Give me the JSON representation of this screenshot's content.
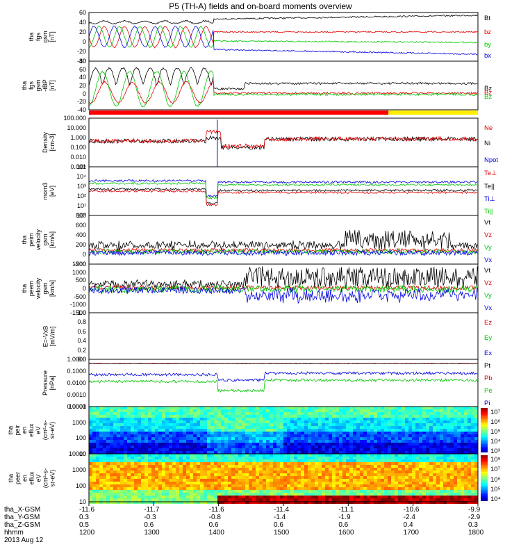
{
  "title": "P5 (TH-A) fields and on-board moments overview",
  "colors": {
    "black": "#000000",
    "red": "#e00000",
    "green": "#00c800",
    "blue": "#0000e0",
    "yellow": "#ffee00"
  },
  "panels": [
    {
      "id": "fgs_gsm",
      "ylabel_lines": [
        "tha",
        "fgs",
        "gsm",
        "[nT]"
      ],
      "yticks": [
        "60",
        "40",
        "20",
        "0",
        "-20",
        "-40"
      ],
      "ylim": [
        -40,
        60
      ],
      "legend": [
        {
          "t": "Bt",
          "c": "black"
        },
        {
          "t": "bz",
          "c": "red"
        },
        {
          "t": "by",
          "c": "green"
        },
        {
          "t": "bx",
          "c": "blue"
        }
      ]
    },
    {
      "id": "fgs_gse_fac",
      "ylabel_lines": [
        "tha",
        "fgs",
        "gsm",
        "-tBP",
        "[nT]"
      ],
      "yticks": [
        "80",
        "60",
        "40",
        "20",
        "0",
        "-20",
        "-40"
      ],
      "ylim": [
        -40,
        80
      ],
      "legend": [
        {
          "t": "Bz",
          "c": "black"
        },
        {
          "t": "Bz",
          "c": "red"
        },
        {
          "t": "Bz",
          "c": "green"
        }
      ]
    },
    {
      "id": "density",
      "ylabel_lines": [
        "Density",
        "[cm-3]"
      ],
      "yticks": [
        "100.000",
        "10.000",
        "1.000",
        "0.100",
        "0.010",
        "0.001"
      ],
      "legend": [
        {
          "t": "Ne",
          "c": "red"
        },
        {
          "t": "Ni",
          "c": "black"
        },
        {
          "t": "Npot",
          "c": "blue"
        }
      ]
    },
    {
      "id": "temp",
      "ylabel_lines": [
        "mom3",
        "[eV]"
      ],
      "yticks": [
        "10⁵",
        "10⁴",
        "10³",
        "10²",
        "10¹",
        "10⁰"
      ],
      "legend": [
        {
          "t": "Te⊥",
          "c": "red"
        },
        {
          "t": "Te||",
          "c": "black"
        },
        {
          "t": "Ti⊥",
          "c": "blue"
        },
        {
          "t": "Ti||",
          "c": "green"
        }
      ]
    },
    {
      "id": "peim_vel",
      "ylabel_lines": [
        "tha",
        "peim",
        "velocity",
        "gsm",
        "[km/s]"
      ],
      "yticks": [
        "800",
        "600",
        "400",
        "200",
        "0",
        "-200"
      ],
      "ylim": [
        -200,
        800
      ],
      "legend": [
        {
          "t": "Vt",
          "c": "black"
        },
        {
          "t": "Vz",
          "c": "red"
        },
        {
          "t": "Vy",
          "c": "green"
        },
        {
          "t": "Vx",
          "c": "blue"
        }
      ]
    },
    {
      "id": "peem_vel",
      "ylabel_lines": [
        "tha",
        "peem",
        "velocity",
        "gsm",
        "[km/s]"
      ],
      "yticks": [
        "1500",
        "1000",
        "500",
        "0",
        "-500",
        "-1000",
        "-1500"
      ],
      "ylim": [
        -1500,
        1500
      ],
      "legend": [
        {
          "t": "Vt",
          "c": "black"
        },
        {
          "t": "Vz",
          "c": "red"
        },
        {
          "t": "Vy",
          "c": "green"
        },
        {
          "t": "Vx",
          "c": "blue"
        }
      ]
    },
    {
      "id": "exb",
      "ylabel_lines": [
        "E=-VxB",
        "[mV/m]"
      ],
      "yticks": [
        "1.0",
        "0.8",
        "0.6",
        "0.4",
        "0.2",
        "0.0"
      ],
      "ylim": [
        0,
        1
      ],
      "legend": [
        {
          "t": "Ez",
          "c": "red"
        },
        {
          "t": "Ey",
          "c": "green"
        },
        {
          "t": "Ex",
          "c": "blue"
        }
      ]
    },
    {
      "id": "pressure",
      "ylabel_lines": [
        "Pressure",
        "[nPa]"
      ],
      "yticks": [
        "1.0000",
        "0.1000",
        "0.0100",
        "0.0010",
        "0.0001"
      ],
      "legend": [
        {
          "t": "Pt",
          "c": "black"
        },
        {
          "t": "Pb",
          "c": "red"
        },
        {
          "t": "Pe",
          "c": "green"
        },
        {
          "t": "Pi",
          "c": "blue"
        }
      ]
    },
    {
      "id": "peir_spec",
      "ylabel_lines": [
        "tha",
        "peir",
        "en",
        "eflux",
        "eV",
        "(cm²-s-",
        "sr-eV)"
      ],
      "yticks": [
        "10000",
        "1000",
        "100",
        "10"
      ],
      "cbar_ticks": [
        "10⁷",
        "10⁶",
        "10⁵",
        "10⁴",
        "10³"
      ]
    },
    {
      "id": "peer_spec",
      "ylabel_lines": [
        "tha",
        "peer",
        "en",
        "eflux",
        "eV",
        "(cm²-s-",
        "sr-eV)"
      ],
      "yticks": [
        "10000",
        "1000",
        "100",
        "10"
      ],
      "cbar_ticks": [
        "10⁸",
        "10⁷",
        "10⁶",
        "10⁵",
        "10⁴"
      ]
    }
  ],
  "xaxis": {
    "rows": [
      {
        "label": "tha_X-GSM",
        "values": [
          "-11.6",
          "-11.7",
          "-11.6",
          "-11.4",
          "-11.1",
          "-10.6",
          "-9.9"
        ]
      },
      {
        "label": "tha_Y-GSM",
        "values": [
          "0.3",
          "-0.3",
          "-0.8",
          "-1.4",
          "-1.9",
          "-2.4",
          "-2.9"
        ]
      },
      {
        "label": "tha_Z-GSM",
        "values": [
          "0.5",
          "0.6",
          "0.6",
          "0.6",
          "0.6",
          "0.4",
          "0.3"
        ]
      },
      {
        "label": "hhmm",
        "values": [
          "1200",
          "1300",
          "1400",
          "1500",
          "1600",
          "1700",
          "1800"
        ]
      }
    ],
    "date": "2013 Aug 12"
  },
  "chart_data": {
    "type": "line",
    "title": "P5 (TH-A) fields and on-board moments overview",
    "x_time_hhmm": [
      "1200",
      "1300",
      "1400",
      "1500",
      "1600",
      "1700",
      "1800"
    ],
    "series_approx": [
      {
        "panel": "fgs_gsm",
        "name": "Bt",
        "values": [
          32,
          30,
          30,
          32,
          34,
          38,
          45
        ]
      },
      {
        "panel": "fgs_gsm",
        "name": "bz",
        "values": [
          10,
          10,
          12,
          14,
          14,
          16,
          18
        ]
      },
      {
        "panel": "fgs_gsm",
        "name": "by",
        "values": [
          10,
          10,
          0,
          0,
          -2,
          -4,
          -5
        ]
      },
      {
        "panel": "fgs_gsm",
        "name": "bx",
        "values": [
          10,
          10,
          -20,
          -20,
          -22,
          -25,
          -30
        ]
      },
      {
        "panel": "density",
        "name": "Ni",
        "values": [
          0.2,
          0.2,
          0.3,
          0.6,
          0.6,
          0.5,
          0.3
        ]
      },
      {
        "panel": "peim_vel",
        "name": "Vt",
        "values": [
          120,
          100,
          80,
          200,
          150,
          200,
          100
        ]
      },
      {
        "panel": "pressure",
        "name": "Pt",
        "values": [
          0.6,
          0.6,
          0.5,
          0.8,
          0.8,
          0.9,
          1.0
        ]
      }
    ]
  }
}
